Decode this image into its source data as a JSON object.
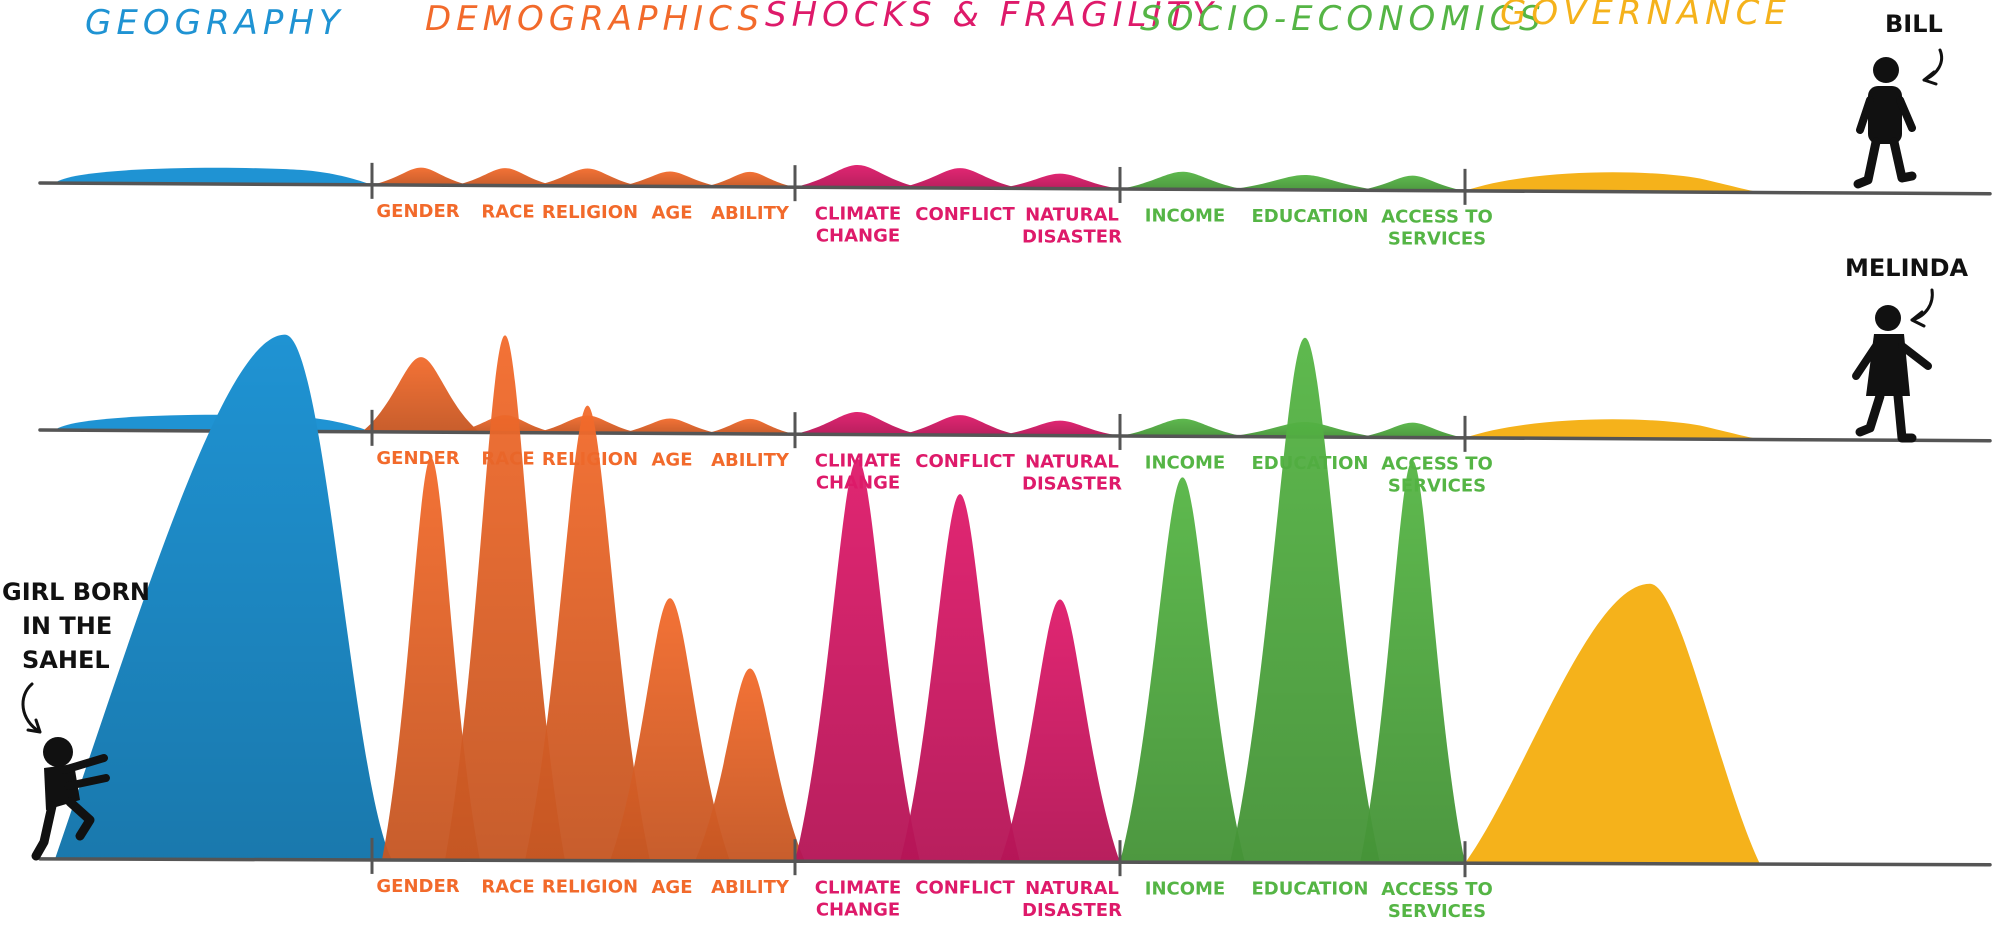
{
  "colors": {
    "geography": "#1f93d3",
    "demographics": "#f26a2b",
    "shocks": "#de1a6a",
    "socio": "#55b545",
    "governance": "#f5b21b",
    "ground": "#555555",
    "ink": "#111111"
  },
  "categories": [
    {
      "key": "geography",
      "label": "GEOGRAPHY"
    },
    {
      "key": "demographics",
      "label": "DEMOGRAPHICS"
    },
    {
      "key": "shocks",
      "label": "SHOCKS & FRAGILITY"
    },
    {
      "key": "socio",
      "label": "SOCIO-ECONOMICS"
    },
    {
      "key": "governance",
      "label": "GOVERNANCE"
    }
  ],
  "segments": [
    {
      "group": "demographics",
      "label": [
        "GENDER"
      ]
    },
    {
      "group": "demographics",
      "label": [
        "RACE"
      ]
    },
    {
      "group": "demographics",
      "label": [
        "RELIGION"
      ]
    },
    {
      "group": "demographics",
      "label": [
        "AGE"
      ]
    },
    {
      "group": "demographics",
      "label": [
        "ABILITY"
      ]
    },
    {
      "group": "shocks",
      "label": [
        "CLIMATE",
        "CHANGE"
      ]
    },
    {
      "group": "shocks",
      "label": [
        "CONFLICT"
      ]
    },
    {
      "group": "shocks",
      "label": [
        "NATURAL",
        "DISASTER"
      ]
    },
    {
      "group": "socio",
      "label": [
        "INCOME"
      ]
    },
    {
      "group": "socio",
      "label": [
        "EDUCATION"
      ]
    },
    {
      "group": "socio",
      "label": [
        "ACCESS TO",
        "SERVICES"
      ]
    }
  ],
  "people": [
    {
      "name": "BILL",
      "name_lines": [
        "BILL"
      ],
      "levels": {
        "geography": 0.35,
        "demographics": [
          0.35,
          0.35,
          0.35,
          0.3,
          0.3
        ],
        "shocks": [
          0.45,
          0.4,
          0.3
        ],
        "socio": [
          0.35,
          0.3,
          0.3
        ],
        "governance": 0.35
      }
    },
    {
      "name": "MELINDA",
      "name_lines": [
        "MELINDA"
      ],
      "levels": {
        "geography": 0.35,
        "demographics": [
          1.5,
          0.35,
          0.35,
          0.3,
          0.3
        ],
        "shocks": [
          0.45,
          0.4,
          0.3
        ],
        "socio": [
          0.35,
          0.3,
          0.3
        ],
        "governance": 0.35
      }
    },
    {
      "name": "GIRL BORN IN THE SAHEL",
      "name_lines": [
        "GIRL BORN",
        "IN THE",
        "SAHEL"
      ],
      "levels": {
        "geography": 3.0,
        "demographics": [
          2.3,
          3.0,
          2.6,
          1.5,
          1.1
        ],
        "shocks": [
          2.3,
          2.1,
          1.5
        ],
        "socio": [
          2.2,
          3.0,
          2.3
        ],
        "governance": 1.6
      }
    }
  ]
}
